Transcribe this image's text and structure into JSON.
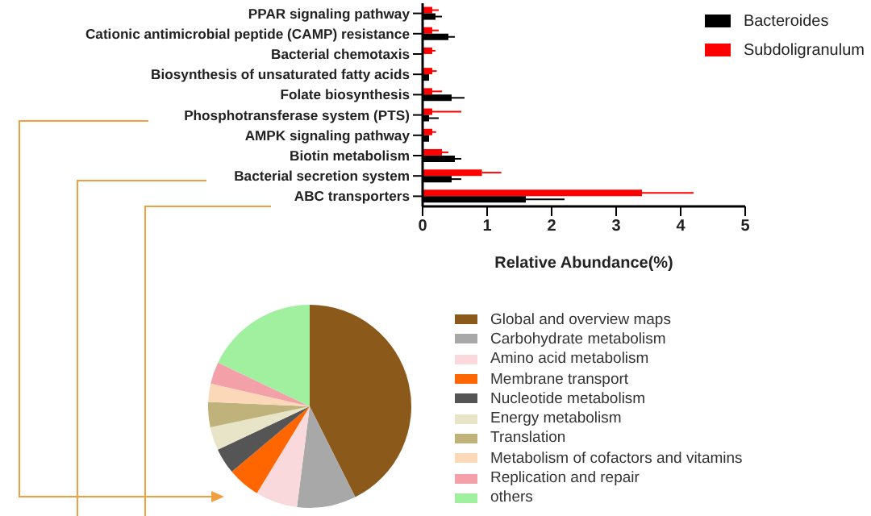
{
  "chart_data": [
    {
      "type": "bar",
      "orientation": "horizontal",
      "xlabel": "Relative Abundance(%)",
      "categories": [
        "PPAR signaling pathway",
        "Cationic antimicrobial peptide (CAMP) resistance",
        "Bacterial chemotaxis",
        "Biosynthesis of unsaturated fatty acids",
        "Folate biosynthesis",
        "Phosphotransferase system (PTS)",
        "AMPK signaling pathway",
        "Biotin metabolism",
        "Bacterial secretion system",
        "ABC transporters"
      ],
      "series": [
        {
          "name": "Bacteroides",
          "color": "#000000",
          "values": [
            0.2,
            0.4,
            null,
            0.1,
            0.45,
            0.1,
            0.1,
            0.5,
            0.45,
            1.6
          ],
          "errors": [
            [
              0.2,
              0.3
            ],
            [
              0.4,
              0.5
            ],
            null,
            null,
            [
              0.45,
              0.65
            ],
            [
              0.1,
              0.25
            ],
            null,
            [
              0.5,
              0.6
            ],
            [
              0.45,
              0.6
            ],
            [
              1.6,
              2.2
            ]
          ]
        },
        {
          "name": "Subdoligranulum",
          "color": "#ff0000",
          "values": [
            0.15,
            0.15,
            0.15,
            0.15,
            0.15,
            0.15,
            0.15,
            0.3,
            0.92,
            3.4
          ],
          "errors": [
            [
              0.15,
              0.25
            ],
            [
              0.15,
              0.25
            ],
            [
              0.15,
              0.2
            ],
            [
              0.15,
              0.22
            ],
            [
              0.15,
              0.3
            ],
            [
              0.15,
              0.6
            ],
            [
              0.15,
              0.21
            ],
            [
              0.3,
              0.4
            ],
            [
              0.92,
              1.22
            ],
            [
              3.4,
              4.2
            ]
          ]
        }
      ],
      "xlim": [
        0,
        5
      ],
      "xticks": [
        0,
        1,
        2,
        3,
        4,
        5
      ],
      "legend": "top right"
    },
    {
      "type": "pie",
      "categories": [
        "Global and overview maps",
        "Carbohydrate metabolism",
        "Amino acid metabolism",
        "Membrane transport",
        "Nucleotide metabolism",
        "Energy metabolism",
        "Translation",
        "Metabolism of cofactors and vitamins",
        "Replication and repair",
        "others"
      ],
      "values": [
        42.6,
        9.4,
        6.7,
        5.2,
        4.1,
        3.7,
        4.0,
        2.9,
        3.5,
        17.9
      ],
      "colors": [
        "#8b5a1b",
        "#a8a8a8",
        "#f9d9dc",
        "#ff6600",
        "#555555",
        "#e8e4c8",
        "#bfb27a",
        "#fbd9b8",
        "#f4a0a8",
        "#a0f0a0"
      ],
      "legend": "right"
    }
  ]
}
